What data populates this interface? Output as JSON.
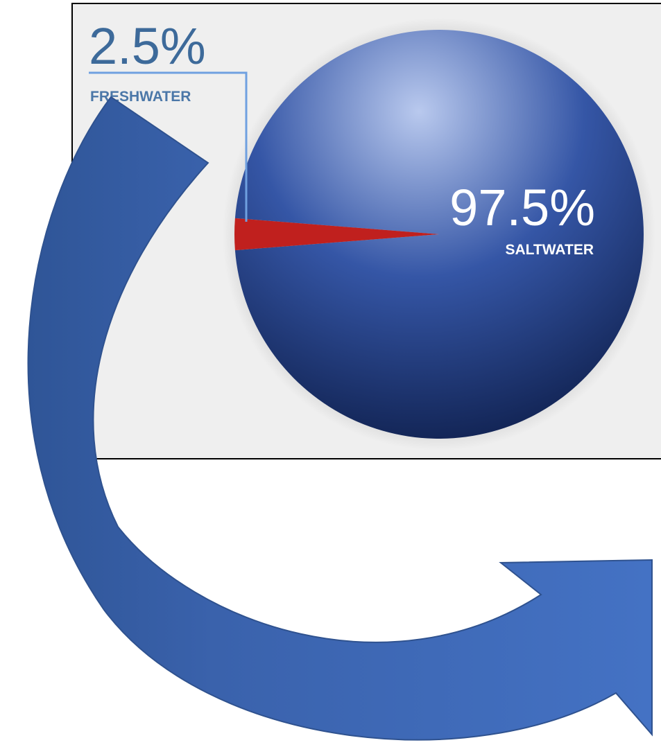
{
  "chart_data": {
    "type": "pie",
    "categories": [
      "FRESHWATER",
      "SALTWATER"
    ],
    "values": [
      2.5,
      97.5
    ],
    "value_labels": [
      "2.5%",
      "97.5%"
    ],
    "colors": [
      "#c0201e",
      "#3556a6"
    ]
  }
}
